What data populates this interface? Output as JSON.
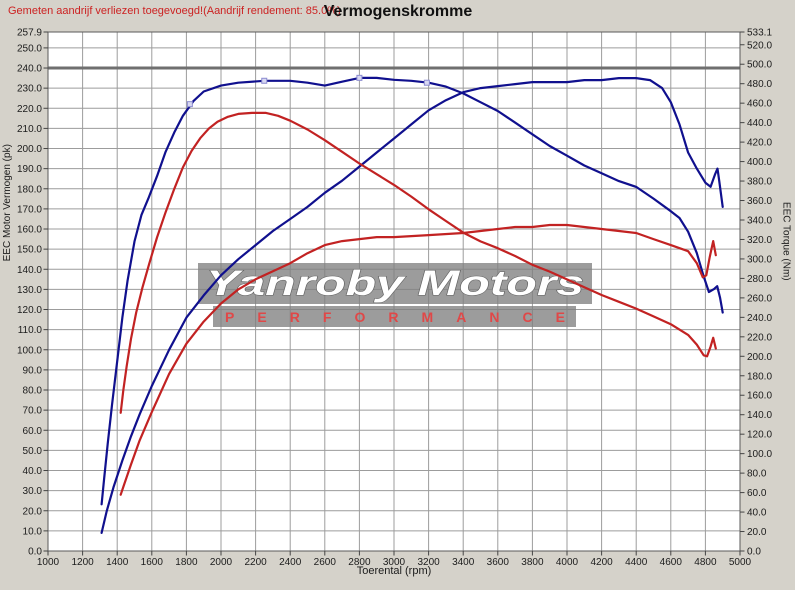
{
  "header": {
    "note": "Gemeten aandrijf verliezen toegevoegd!(Aandrijf rendement: 85.0%)",
    "title": "Vermogenskromme"
  },
  "watermark": {
    "line1": "Yanroby Motors",
    "line2": "PERFORMANCE"
  },
  "axes": {
    "x_label": "Toerental (rpm)",
    "left_label": "EEC Motor Vermogen (pk)",
    "right_label": "EEC Torque (Nm)"
  },
  "colors": {
    "blue": "#10108e",
    "red": "#c22222",
    "grid": "#9c9c9c",
    "grid_bold": "#6f6f6f",
    "frame": "#5a5a5a",
    "tick": "#444444",
    "label": "#1c1c1c",
    "plot_bg": "#ffffff",
    "page_bg": "#d5d2ca",
    "marker": "#8c8cd0"
  },
  "chart_data": {
    "type": "line",
    "title": "Vermogenskromme",
    "xlabel": "Toerental (rpm)",
    "ylabel_left": "EEC Motor Vermogen (pk)",
    "ylabel_right": "EEC Torque (Nm)",
    "xlim": [
      1000,
      5000
    ],
    "ylim_left": [
      0,
      257.9
    ],
    "ylim_right": [
      0,
      533.1
    ],
    "grid": true,
    "legend": "none",
    "bold_left_value": 240,
    "x_ticks": [
      1000,
      1200,
      1400,
      1600,
      1800,
      2000,
      2200,
      2400,
      2600,
      2800,
      3000,
      3200,
      3400,
      3600,
      3800,
      4000,
      4200,
      4400,
      4600,
      4800,
      5000
    ],
    "left_ticks": [
      257.9,
      250,
      240,
      230,
      220,
      210,
      200,
      190,
      180,
      170,
      160,
      150,
      140,
      130,
      120,
      110,
      100,
      90,
      80,
      70,
      60,
      50,
      40,
      30,
      20,
      10,
      0
    ],
    "right_ticks": [
      533.1,
      520,
      500,
      480,
      460,
      440,
      420,
      400,
      380,
      360,
      340,
      320,
      300,
      280,
      260,
      240,
      220,
      200,
      180,
      160,
      140,
      120,
      100,
      80,
      60,
      40,
      20,
      0
    ],
    "series": [
      {
        "id": "torque_blue",
        "axis": "right",
        "unit": "Nm",
        "color": "#10108e",
        "points": [
          [
            1310,
            48
          ],
          [
            1325,
            75
          ],
          [
            1345,
            110
          ],
          [
            1370,
            150
          ],
          [
            1400,
            195
          ],
          [
            1430,
            240
          ],
          [
            1460,
            278
          ],
          [
            1500,
            318
          ],
          [
            1540,
            345
          ],
          [
            1580,
            362
          ],
          [
            1630,
            385
          ],
          [
            1680,
            410
          ],
          [
            1730,
            430
          ],
          [
            1780,
            447
          ],
          [
            1840,
            462
          ],
          [
            1900,
            472
          ],
          [
            2000,
            478
          ],
          [
            2100,
            481
          ],
          [
            2250,
            483
          ],
          [
            2400,
            483
          ],
          [
            2500,
            481
          ],
          [
            2600,
            478
          ],
          [
            2700,
            482
          ],
          [
            2800,
            486
          ],
          [
            2900,
            486
          ],
          [
            3000,
            484
          ],
          [
            3100,
            483
          ],
          [
            3200,
            481
          ],
          [
            3300,
            477
          ],
          [
            3400,
            470
          ],
          [
            3500,
            461
          ],
          [
            3600,
            452
          ],
          [
            3700,
            440
          ],
          [
            3800,
            428
          ],
          [
            3900,
            416
          ],
          [
            4000,
            406
          ],
          [
            4100,
            396
          ],
          [
            4200,
            388
          ],
          [
            4300,
            380
          ],
          [
            4400,
            374
          ],
          [
            4500,
            362
          ],
          [
            4600,
            349
          ],
          [
            4650,
            342
          ],
          [
            4700,
            328
          ],
          [
            4750,
            306
          ],
          [
            4790,
            282
          ],
          [
            4820,
            266
          ],
          [
            4850,
            269
          ],
          [
            4868,
            272
          ],
          [
            4885,
            260
          ],
          [
            4900,
            245
          ]
        ],
        "markers": [
          [
            1820,
            459
          ],
          [
            2250,
            483
          ],
          [
            2800,
            486
          ],
          [
            3190,
            481
          ]
        ]
      },
      {
        "id": "power_blue",
        "axis": "left",
        "unit": "pk",
        "color": "#10108e",
        "points": [
          [
            1310,
            9
          ],
          [
            1340,
            20
          ],
          [
            1380,
            32
          ],
          [
            1430,
            45
          ],
          [
            1480,
            57
          ],
          [
            1530,
            68
          ],
          [
            1600,
            82
          ],
          [
            1700,
            100
          ],
          [
            1800,
            116
          ],
          [
            1900,
            127
          ],
          [
            2000,
            137
          ],
          [
            2100,
            145
          ],
          [
            2200,
            152
          ],
          [
            2300,
            159
          ],
          [
            2400,
            165
          ],
          [
            2500,
            171
          ],
          [
            2600,
            178
          ],
          [
            2700,
            184
          ],
          [
            2800,
            191
          ],
          [
            2900,
            198
          ],
          [
            3000,
            205
          ],
          [
            3100,
            212
          ],
          [
            3200,
            219
          ],
          [
            3300,
            224
          ],
          [
            3400,
            228
          ],
          [
            3500,
            230
          ],
          [
            3600,
            231
          ],
          [
            3700,
            232
          ],
          [
            3800,
            233
          ],
          [
            3900,
            233
          ],
          [
            4000,
            233
          ],
          [
            4100,
            234
          ],
          [
            4200,
            234
          ],
          [
            4300,
            235
          ],
          [
            4400,
            235
          ],
          [
            4480,
            234
          ],
          [
            4550,
            230
          ],
          [
            4600,
            223
          ],
          [
            4650,
            212
          ],
          [
            4700,
            198
          ],
          [
            4750,
            190
          ],
          [
            4800,
            183
          ],
          [
            4830,
            181
          ],
          [
            4855,
            187
          ],
          [
            4870,
            190
          ],
          [
            4880,
            184
          ],
          [
            4900,
            171
          ]
        ],
        "markers": []
      },
      {
        "id": "torque_red",
        "axis": "right",
        "unit": "Nm",
        "color": "#c22222",
        "points": [
          [
            1420,
            142
          ],
          [
            1435,
            165
          ],
          [
            1455,
            190
          ],
          [
            1480,
            218
          ],
          [
            1510,
            245
          ],
          [
            1545,
            270
          ],
          [
            1585,
            295
          ],
          [
            1630,
            322
          ],
          [
            1680,
            348
          ],
          [
            1730,
            372
          ],
          [
            1780,
            394
          ],
          [
            1830,
            411
          ],
          [
            1880,
            424
          ],
          [
            1930,
            434
          ],
          [
            1980,
            441
          ],
          [
            2040,
            446
          ],
          [
            2100,
            449
          ],
          [
            2180,
            450
          ],
          [
            2260,
            450
          ],
          [
            2330,
            447
          ],
          [
            2400,
            442
          ],
          [
            2500,
            433
          ],
          [
            2600,
            422
          ],
          [
            2700,
            410
          ],
          [
            2800,
            398
          ],
          [
            2900,
            387
          ],
          [
            3000,
            376
          ],
          [
            3100,
            364
          ],
          [
            3200,
            351
          ],
          [
            3300,
            339
          ],
          [
            3400,
            327
          ],
          [
            3500,
            318
          ],
          [
            3600,
            311
          ],
          [
            3700,
            303
          ],
          [
            3800,
            294
          ],
          [
            3900,
            287
          ],
          [
            4000,
            279
          ],
          [
            4100,
            271
          ],
          [
            4200,
            263
          ],
          [
            4300,
            256
          ],
          [
            4400,
            249
          ],
          [
            4500,
            241
          ],
          [
            4600,
            233
          ],
          [
            4700,
            222
          ],
          [
            4750,
            212
          ],
          [
            4790,
            201
          ],
          [
            4810,
            200
          ],
          [
            4830,
            210
          ],
          [
            4845,
            219
          ],
          [
            4860,
            208
          ]
        ],
        "markers": []
      },
      {
        "id": "power_red",
        "axis": "left",
        "unit": "pk",
        "color": "#c22222",
        "points": [
          [
            1420,
            28
          ],
          [
            1440,
            33
          ],
          [
            1480,
            43
          ],
          [
            1530,
            55
          ],
          [
            1600,
            69
          ],
          [
            1700,
            88
          ],
          [
            1800,
            103
          ],
          [
            1900,
            114
          ],
          [
            2000,
            123
          ],
          [
            2100,
            130
          ],
          [
            2200,
            135
          ],
          [
            2300,
            139
          ],
          [
            2400,
            143
          ],
          [
            2500,
            148
          ],
          [
            2600,
            152
          ],
          [
            2700,
            154
          ],
          [
            2800,
            155
          ],
          [
            2900,
            156
          ],
          [
            3000,
            156
          ],
          [
            3200,
            157
          ],
          [
            3400,
            158
          ],
          [
            3500,
            159
          ],
          [
            3600,
            160
          ],
          [
            3700,
            161
          ],
          [
            3800,
            161
          ],
          [
            3900,
            162
          ],
          [
            4000,
            162
          ],
          [
            4100,
            161
          ],
          [
            4200,
            160
          ],
          [
            4300,
            159
          ],
          [
            4400,
            158
          ],
          [
            4500,
            155
          ],
          [
            4600,
            152
          ],
          [
            4700,
            149
          ],
          [
            4750,
            143
          ],
          [
            4785,
            136
          ],
          [
            4805,
            137
          ],
          [
            4825,
            146
          ],
          [
            4845,
            154
          ],
          [
            4860,
            147
          ]
        ],
        "markers": []
      }
    ]
  }
}
